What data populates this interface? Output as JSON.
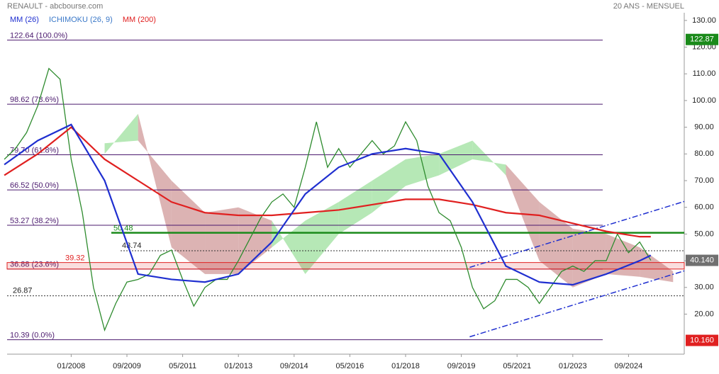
{
  "chart_data": {
    "type": "line",
    "title": "RENAULT - abcbourse.com",
    "subtitle": "20 ANS - MENSUEL",
    "xlim": [
      "02/2006",
      "05/2026"
    ],
    "xticks": [
      "01/2008",
      "09/2009",
      "05/2011",
      "01/2013",
      "09/2014",
      "05/2016",
      "01/2018",
      "09/2019",
      "05/2021",
      "01/2023",
      "09/2024"
    ],
    "ylim": [
      5,
      135
    ],
    "yticks": [
      {
        "value": 20,
        "label": "20.00"
      },
      {
        "value": 30,
        "label": "30.00"
      },
      {
        "value": 40,
        "label": "40.00"
      },
      {
        "value": 50,
        "label": "50.00"
      },
      {
        "value": 60,
        "label": "60.00"
      },
      {
        "value": 70,
        "label": "70.00"
      },
      {
        "value": 80,
        "label": "80.00"
      },
      {
        "value": 90,
        "label": "90.00"
      },
      {
        "value": 100,
        "label": "100.00"
      },
      {
        "value": 110,
        "label": "110.00"
      },
      {
        "value": 120,
        "label": "120.00"
      },
      {
        "value": 130,
        "label": "130.00"
      }
    ],
    "price": {
      "color": "#2e8b2e",
      "x": [
        "01/2006",
        "05/2006",
        "09/2006",
        "01/2007",
        "05/2007",
        "09/2007",
        "01/2008",
        "05/2008",
        "09/2008",
        "01/2009",
        "05/2009",
        "09/2009",
        "01/2010",
        "05/2010",
        "09/2010",
        "01/2011",
        "05/2011",
        "09/2011",
        "01/2012",
        "05/2012",
        "09/2012",
        "01/2013",
        "05/2013",
        "09/2013",
        "01/2014",
        "05/2014",
        "09/2014",
        "01/2015",
        "05/2015",
        "09/2015",
        "01/2016",
        "05/2016",
        "09/2016",
        "01/2017",
        "05/2017",
        "09/2017",
        "01/2018",
        "05/2018",
        "09/2018",
        "01/2019",
        "05/2019",
        "09/2019",
        "01/2020",
        "05/2020",
        "09/2020",
        "01/2021",
        "05/2021",
        "09/2021",
        "01/2022",
        "05/2022",
        "09/2022",
        "01/2023",
        "05/2023",
        "09/2023",
        "01/2024",
        "05/2024",
        "09/2024",
        "01/2025",
        "05/2025"
      ],
      "values": [
        78,
        82,
        88,
        98,
        112,
        108,
        78,
        58,
        30,
        14,
        24,
        32,
        33,
        35,
        42,
        44,
        33,
        23,
        30,
        33,
        33,
        40,
        48,
        56,
        62,
        65,
        60,
        75,
        92,
        75,
        82,
        75,
        80,
        85,
        80,
        83,
        92,
        85,
        68,
        58,
        55,
        45,
        30,
        22,
        25,
        33,
        33,
        30,
        24,
        30,
        36,
        38,
        36,
        40,
        40,
        50,
        43,
        47,
        40.14
      ]
    },
    "series": [
      {
        "name": "MM (26)",
        "color": "#1f2fd0",
        "x": [
          "01/2006",
          "01/2007",
          "01/2008",
          "01/2009",
          "01/2010",
          "01/2011",
          "01/2012",
          "01/2013",
          "01/2014",
          "01/2015",
          "01/2016",
          "01/2017",
          "01/2018",
          "01/2019",
          "01/2020",
          "01/2021",
          "01/2022",
          "01/2023",
          "01/2024",
          "01/2025",
          "05/2025"
        ],
        "values": [
          76,
          85,
          91,
          70,
          35,
          33,
          32,
          35,
          47,
          65,
          75,
          80,
          82,
          80,
          62,
          38,
          32,
          31,
          35,
          40,
          42
        ]
      },
      {
        "name": "ICHIMOKU (26, 9)",
        "color": "#3a78c8",
        "up_color": "#8fdc8f",
        "down_color": "#c98a8a",
        "x": [
          "01/2009",
          "01/2010",
          "01/2011",
          "01/2012",
          "01/2013",
          "01/2014",
          "01/2015",
          "01/2016",
          "01/2017",
          "01/2018",
          "01/2019",
          "01/2020",
          "01/2021",
          "01/2022",
          "01/2023",
          "01/2024",
          "01/2025",
          "01/2026"
        ],
        "span_a": [
          80,
          95,
          45,
          35,
          35,
          45,
          55,
          62,
          70,
          78,
          80,
          85,
          72,
          40,
          30,
          35,
          34,
          32
        ],
        "span_b": [
          84,
          85,
          70,
          58,
          60,
          55,
          35,
          50,
          58,
          68,
          72,
          78,
          76,
          62,
          52,
          50,
          45,
          36
        ]
      },
      {
        "name": "MM (200)",
        "color": "#e02020",
        "x": [
          "01/2006",
          "01/2007",
          "01/2008",
          "01/2009",
          "01/2010",
          "01/2011",
          "01/2012",
          "01/2013",
          "01/2014",
          "01/2015",
          "01/2016",
          "01/2017",
          "01/2018",
          "01/2019",
          "01/2020",
          "01/2021",
          "01/2022",
          "01/2023",
          "01/2024",
          "01/2025",
          "05/2025"
        ],
        "values": [
          72,
          80,
          90,
          78,
          70,
          62,
          58,
          57,
          57,
          58,
          59,
          61,
          63,
          63,
          61,
          58,
          57,
          54,
          51,
          49,
          49
        ]
      }
    ],
    "fibonacci": [
      {
        "value": 122.64,
        "label": "122.64  (100.0%)"
      },
      {
        "value": 98.62,
        "label": "98.62  (78.6%)"
      },
      {
        "value": 79.7,
        "label": "79.70  (61.8%)"
      },
      {
        "value": 66.52,
        "label": "66.52  (50.0%)"
      },
      {
        "value": 53.27,
        "label": "53.27  (38.2%)"
      },
      {
        "value": 36.88,
        "label": "36.88  (23.6%)"
      },
      {
        "value": 10.39,
        "label": "10.39  (0.0%)"
      }
    ],
    "resistance": {
      "value": 50.48,
      "color": "#1a8a1a"
    },
    "dotted_levels": [
      43.74,
      26.87
    ],
    "band": {
      "low": 36.88,
      "high": 39.32,
      "color": "#e02020"
    },
    "trendlines": [
      {
        "color": "#1f2fd0",
        "x": [
          "12/2019",
          "05/2026"
        ],
        "values": [
          11.5,
          36.2
        ]
      },
      {
        "color": "#1f2fd0",
        "x": [
          "12/2019",
          "05/2026"
        ],
        "values": [
          37.5,
          62.2
        ]
      }
    ],
    "price_tags": [
      {
        "value": 122.87,
        "label": "122.87",
        "color": "#1a8a1a"
      },
      {
        "value": 40.14,
        "label": "40.140",
        "color": "#707070"
      },
      {
        "value": 10.16,
        "label": "10.160",
        "color": "#e02020"
      }
    ]
  }
}
